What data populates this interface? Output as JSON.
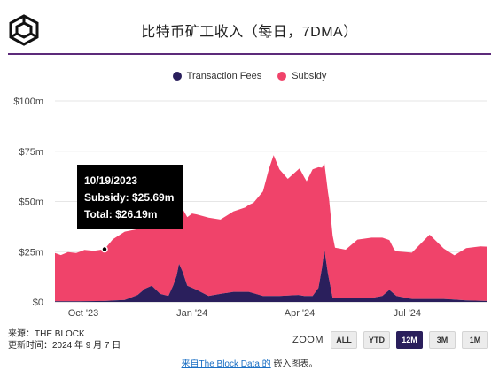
{
  "header": {
    "title": "比特币矿工收入（每日，7DMA）"
  },
  "legend": [
    {
      "label": "Transaction Fees",
      "color": "#2a1f5c"
    },
    {
      "label": "Subsidy",
      "color": "#f0436a"
    }
  ],
  "tooltip": {
    "date": "10/19/2023",
    "subsidy": "Subsidy: $25.69m",
    "total": "Total: $26.19m"
  },
  "chart_data": {
    "type": "area",
    "stacked": true,
    "ylim": [
      0,
      100
    ],
    "y_unit": "$m",
    "y_ticks": [
      "$0",
      "$25m",
      "$50m",
      "$75m",
      "$100m"
    ],
    "x_tick_labels": [
      "Oct '23",
      "Jan '24",
      "Apr '24",
      "Jul '24"
    ],
    "x_start": "2023-09-07",
    "x_end": "2024-09-07",
    "x_ticks": [
      "2023-10-01",
      "2024-01-01",
      "2024-04-01",
      "2024-07-01"
    ],
    "grid": true,
    "legend_position": "top",
    "highlight": {
      "date": "2023-10-19",
      "total": 26.19
    },
    "series": [
      {
        "name": "Transaction Fees",
        "color": "#2a1f5c",
        "points": [
          [
            "2023-09-07",
            0.3
          ],
          [
            "2023-09-28",
            0.3
          ],
          [
            "2023-10-19",
            0.5
          ],
          [
            "2023-11-05",
            1.0
          ],
          [
            "2023-11-16",
            3.5
          ],
          [
            "2023-11-22",
            6.5
          ],
          [
            "2023-11-28",
            8.0
          ],
          [
            "2023-12-05",
            4.0
          ],
          [
            "2023-12-12",
            3.0
          ],
          [
            "2023-12-16",
            8.0
          ],
          [
            "2023-12-19",
            13.0
          ],
          [
            "2023-12-21",
            19.0
          ],
          [
            "2023-12-24",
            15.0
          ],
          [
            "2023-12-28",
            8.0
          ],
          [
            "2024-01-05",
            6.0
          ],
          [
            "2024-01-15",
            3.0
          ],
          [
            "2024-01-25",
            4.0
          ],
          [
            "2024-02-05",
            5.0
          ],
          [
            "2024-02-18",
            5.0
          ],
          [
            "2024-03-01",
            3.0
          ],
          [
            "2024-03-15",
            3.0
          ],
          [
            "2024-03-31",
            3.5
          ],
          [
            "2024-04-05",
            3.0
          ],
          [
            "2024-04-12",
            3.0
          ],
          [
            "2024-04-17",
            7.0
          ],
          [
            "2024-04-20",
            17.0
          ],
          [
            "2024-04-22",
            26.0
          ],
          [
            "2024-04-25",
            14.0
          ],
          [
            "2024-04-29",
            2.0
          ],
          [
            "2024-05-15",
            2.0
          ],
          [
            "2024-06-01",
            2.0
          ],
          [
            "2024-06-10",
            3.0
          ],
          [
            "2024-06-16",
            6.0
          ],
          [
            "2024-06-22",
            3.0
          ],
          [
            "2024-07-05",
            1.5
          ],
          [
            "2024-08-01",
            1.5
          ],
          [
            "2024-08-20",
            0.8
          ],
          [
            "2024-09-07",
            0.5
          ]
        ]
      },
      {
        "name": "Subsidy",
        "color": "#f0436a",
        "points": [
          [
            "2023-09-07",
            24.0
          ],
          [
            "2023-09-12",
            23.0
          ],
          [
            "2023-09-18",
            24.5
          ],
          [
            "2023-09-25",
            24.0
          ],
          [
            "2023-10-02",
            25.5
          ],
          [
            "2023-10-10",
            25.0
          ],
          [
            "2023-10-19",
            25.69
          ],
          [
            "2023-10-26",
            30.5
          ],
          [
            "2023-11-05",
            34.0
          ],
          [
            "2023-11-14",
            33.0
          ],
          [
            "2023-11-24",
            33.0
          ],
          [
            "2023-12-05",
            38.0
          ],
          [
            "2023-12-15",
            36.0
          ],
          [
            "2023-12-22",
            30.0
          ],
          [
            "2024-01-01",
            37.0
          ],
          [
            "2024-01-15",
            39.0
          ],
          [
            "2024-01-25",
            37.0
          ],
          [
            "2024-02-05",
            40.0
          ],
          [
            "2024-02-15",
            42.0
          ],
          [
            "2024-02-22",
            45.0
          ],
          [
            "2024-03-01",
            52.0
          ],
          [
            "2024-03-06",
            63.0
          ],
          [
            "2024-03-10",
            70.0
          ],
          [
            "2024-03-15",
            63.0
          ],
          [
            "2024-03-22",
            58.0
          ],
          [
            "2024-04-01",
            63.0
          ],
          [
            "2024-04-07",
            57.0
          ],
          [
            "2024-04-12",
            63.0
          ],
          [
            "2024-04-17",
            60.0
          ],
          [
            "2024-04-22",
            43.0
          ],
          [
            "2024-04-26",
            40.0
          ],
          [
            "2024-05-01",
            25.0
          ],
          [
            "2024-05-10",
            24.0
          ],
          [
            "2024-05-20",
            29.0
          ],
          [
            "2024-06-01",
            30.0
          ],
          [
            "2024-06-10",
            29.0
          ],
          [
            "2024-06-20",
            22.0
          ],
          [
            "2024-07-05",
            23.0
          ],
          [
            "2024-07-20",
            32.0
          ],
          [
            "2024-08-01",
            25.0
          ],
          [
            "2024-08-10",
            22.0
          ],
          [
            "2024-08-20",
            26.0
          ],
          [
            "2024-09-01",
            27.0
          ],
          [
            "2024-09-07",
            27.0
          ]
        ]
      }
    ]
  },
  "footer": {
    "source": "来源：THE BLOCK",
    "updated": "更新时间：2024 年 9 月 7 日"
  },
  "zoom": {
    "label": "ZOOM",
    "buttons": [
      "ALL",
      "YTD",
      "12M",
      "3M",
      "1M"
    ],
    "active": "12M"
  },
  "embed": {
    "link_text": "来自The Block Data 的",
    "suffix": " 嵌入图表。"
  }
}
